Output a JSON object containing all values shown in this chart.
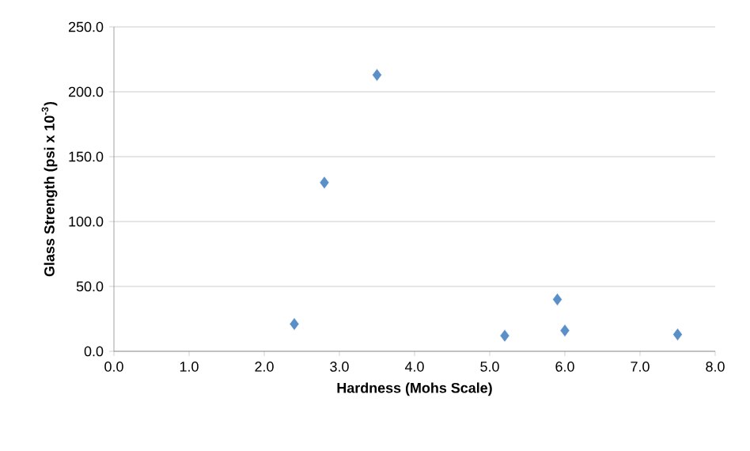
{
  "chart_data": {
    "type": "scatter",
    "xlabel": "Hardness (Mohs Scale)",
    "ylabel": "Glass Strength (psi x 10$^{-3}$)",
    "x": [
      2.4,
      2.8,
      3.5,
      5.2,
      5.9,
      6.0,
      7.5
    ],
    "series": [
      {
        "color": "#5b8fc7",
        "values": [
          21,
          130,
          213,
          12,
          40,
          16,
          13
        ]
      }
    ],
    "xlim": [
      0,
      8
    ],
    "ylim": [
      0,
      250
    ],
    "xticks": [
      {
        "value": 0,
        "label": "0.0"
      },
      {
        "value": 1,
        "label": "1.0"
      },
      {
        "value": 2,
        "label": "2.0"
      },
      {
        "value": 3,
        "label": "3.0"
      },
      {
        "value": 4,
        "label": "4.0"
      },
      {
        "value": 5,
        "label": "5.0"
      },
      {
        "value": 6,
        "label": "6.0"
      },
      {
        "value": 7,
        "label": "7.0"
      },
      {
        "value": 8,
        "label": "8.0"
      }
    ],
    "yticks": [
      {
        "value": 0,
        "label": "0.0"
      },
      {
        "value": 50,
        "label": "50.0"
      },
      {
        "value": 100,
        "label": "100.0"
      },
      {
        "value": 150,
        "label": "150.0"
      },
      {
        "value": 200,
        "label": "200.0"
      },
      {
        "value": 250,
        "label": "250.0"
      }
    ],
    "grid": "y",
    "marker": "diamond"
  }
}
